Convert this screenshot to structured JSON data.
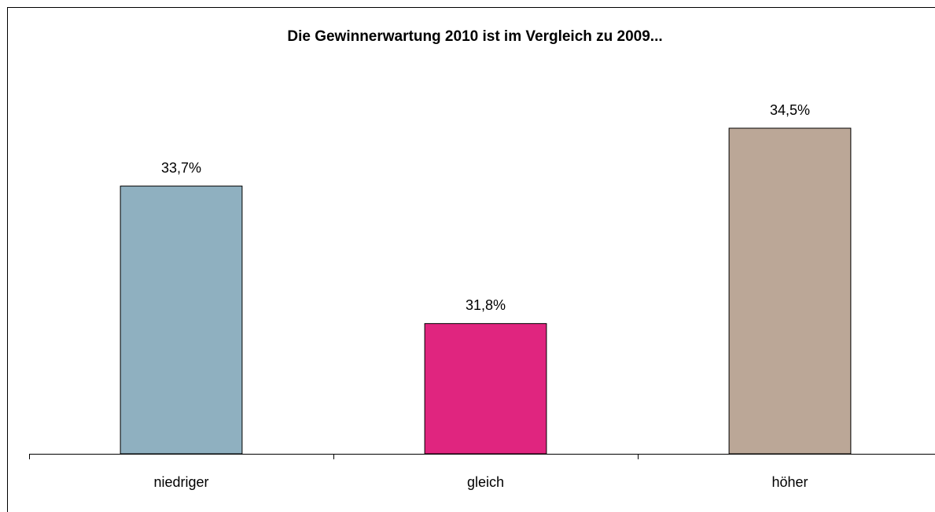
{
  "chart_data": {
    "type": "bar",
    "title": "Die Gewinnerwartung 2010 ist im Vergleich zu 2009...",
    "categories": [
      "niedriger",
      "gleich",
      "höher"
    ],
    "values": [
      33.7,
      31.8,
      34.5
    ],
    "value_labels": [
      "33,7%",
      "31,8%",
      "34,5%"
    ],
    "colors": [
      "#8fb0c0",
      "#e0257f",
      "#bba797"
    ],
    "ylim": [
      30,
      35
    ]
  }
}
